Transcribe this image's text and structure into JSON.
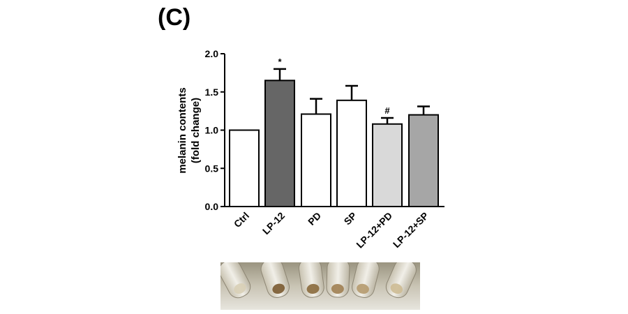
{
  "panel_label": "(C)",
  "chart_data": {
    "type": "bar",
    "title": "",
    "xlabel": "",
    "ylabel": "melanin contents\n(fold change)",
    "ylabel_lines": [
      "melanin contents",
      "(fold change)"
    ],
    "ylim": [
      0,
      2.0
    ],
    "yticks": [
      0.0,
      0.5,
      1.0,
      1.5,
      2.0
    ],
    "ytick_labels": [
      "0.0",
      "0.5",
      "1.0",
      "1.5",
      "2.0"
    ],
    "grid": false,
    "categories": [
      "Ctrl",
      "LP-12",
      "PD",
      "SP",
      "LP-12+PD",
      "LP-12+SP"
    ],
    "values": [
      1.0,
      1.65,
      1.21,
      1.39,
      1.08,
      1.2
    ],
    "errors": [
      0.0,
      0.15,
      0.2,
      0.19,
      0.08,
      0.11
    ],
    "annotations": [
      "",
      "*",
      "",
      "",
      "#",
      ""
    ],
    "bar_colors": [
      "#ffffff",
      "#666666",
      "#ffffff",
      "#ffffff",
      "#d9d9d9",
      "#a6a6a6"
    ]
  }
}
